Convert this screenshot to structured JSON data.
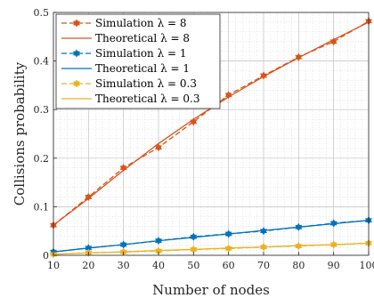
{
  "chart_data": {
    "type": "line",
    "xlabel": "Number of nodes",
    "ylabel": "Collisions probability",
    "xlim": [
      10,
      100
    ],
    "ylim": [
      0,
      0.5
    ],
    "xticks": [
      10,
      20,
      30,
      40,
      50,
      60,
      70,
      80,
      90,
      100
    ],
    "yticks": [
      0,
      0.1,
      0.2,
      0.3,
      0.4,
      0.5
    ],
    "x_tick_labels": [
      "10",
      "20",
      "30",
      "40",
      "50",
      "60",
      "70",
      "80",
      "90",
      "100"
    ],
    "y_tick_labels": [
      "0",
      "0.1",
      "0.2",
      "0.3",
      "0.4",
      "0.5"
    ],
    "grid": true,
    "minor_grid": true,
    "legend_position": "top-left",
    "x": [
      10,
      20,
      30,
      40,
      50,
      60,
      70,
      80,
      90,
      100
    ],
    "series": [
      {
        "name": "Simulation λ = 8",
        "style": "dashed-star",
        "color": "#d95319",
        "values": [
          0.062,
          0.12,
          0.18,
          0.222,
          0.275,
          0.33,
          0.37,
          0.408,
          0.44,
          0.482
        ]
      },
      {
        "name": "Theoretical λ = 8",
        "style": "solid",
        "color": "#d95319",
        "values": [
          0.062,
          0.117,
          0.175,
          0.23,
          0.28,
          0.326,
          0.368,
          0.407,
          0.444,
          0.48
        ]
      },
      {
        "name": "Simulation λ = 1",
        "style": "dashed-star",
        "color": "#0072bd",
        "values": [
          0.007,
          0.015,
          0.022,
          0.03,
          0.038,
          0.044,
          0.05,
          0.058,
          0.066,
          0.072
        ]
      },
      {
        "name": "Theoretical λ = 1",
        "style": "solid",
        "color": "#0072bd",
        "values": [
          0.007,
          0.015,
          0.022,
          0.03,
          0.037,
          0.044,
          0.051,
          0.058,
          0.065,
          0.072
        ]
      },
      {
        "name": "Simulation λ = 0.3",
        "style": "dashed-star",
        "color": "#edb120",
        "values": [
          0.002,
          0.005,
          0.007,
          0.009,
          0.012,
          0.014,
          0.017,
          0.019,
          0.022,
          0.025
        ]
      },
      {
        "name": "Theoretical λ = 0.3",
        "style": "solid",
        "color": "#edb120",
        "values": [
          0.002,
          0.005,
          0.007,
          0.01,
          0.012,
          0.015,
          0.017,
          0.02,
          0.022,
          0.025
        ]
      }
    ]
  }
}
